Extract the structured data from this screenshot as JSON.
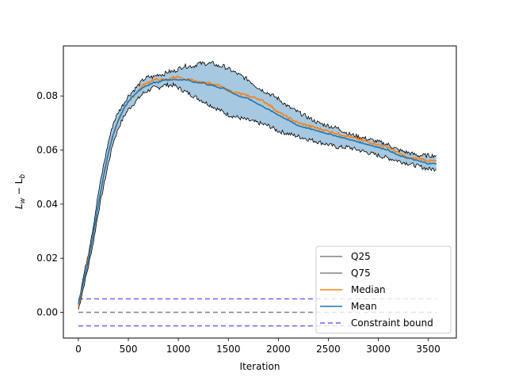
{
  "chart_data": {
    "type": "line",
    "title": "",
    "xlabel": "Iteration",
    "ylabel_main": "L",
    "ylabel_sub1": "w",
    "ylabel_mid": " − L",
    "ylabel_sub2": "b",
    "xlim": [
      -150,
      3780
    ],
    "ylim": [
      -0.0095,
      0.0985
    ],
    "x_ticks": [
      0,
      500,
      1000,
      1500,
      2000,
      2500,
      3000,
      3500
    ],
    "y_ticks": [
      0.0,
      0.02,
      0.04,
      0.06,
      0.08
    ],
    "x_tick_labels": [
      "0",
      "500",
      "1000",
      "1500",
      "2000",
      "2500",
      "3000",
      "3500"
    ],
    "y_tick_labels": [
      "0.00",
      "0.02",
      "0.04",
      "0.06",
      "0.08"
    ],
    "grid": false,
    "legend_position": "lower-right",
    "series": [
      {
        "name": "Q25",
        "color": "#000000",
        "x": [
          0,
          50,
          100,
          150,
          200,
          250,
          300,
          350,
          400,
          450,
          500,
          550,
          600,
          650,
          700,
          750,
          800,
          850,
          900,
          950,
          1000,
          1050,
          1100,
          1150,
          1200,
          1250,
          1300,
          1350,
          1400,
          1450,
          1500,
          1600,
          1700,
          1800,
          1900,
          2000,
          2100,
          2200,
          2300,
          2400,
          2500,
          2600,
          2700,
          2800,
          2900,
          3000,
          3100,
          3200,
          3300,
          3400,
          3500,
          3580
        ],
        "y": [
          0.001,
          0.009,
          0.017,
          0.026,
          0.037,
          0.046,
          0.055,
          0.063,
          0.068,
          0.072,
          0.075,
          0.077,
          0.079,
          0.081,
          0.082,
          0.083,
          0.083,
          0.084,
          0.084,
          0.084,
          0.083,
          0.082,
          0.081,
          0.08,
          0.079,
          0.078,
          0.077,
          0.076,
          0.075,
          0.074,
          0.073,
          0.072,
          0.071,
          0.07,
          0.069,
          0.067,
          0.066,
          0.065,
          0.064,
          0.063,
          0.062,
          0.061,
          0.061,
          0.06,
          0.059,
          0.058,
          0.057,
          0.056,
          0.055,
          0.054,
          0.053,
          0.053
        ]
      },
      {
        "name": "Q75",
        "color": "#000000",
        "x": [
          0,
          50,
          100,
          150,
          200,
          250,
          300,
          350,
          400,
          450,
          500,
          550,
          600,
          650,
          700,
          750,
          800,
          850,
          900,
          950,
          1000,
          1050,
          1100,
          1150,
          1200,
          1250,
          1300,
          1350,
          1400,
          1450,
          1500,
          1600,
          1700,
          1800,
          1900,
          2000,
          2100,
          2200,
          2300,
          2400,
          2500,
          2600,
          2700,
          2800,
          2900,
          3000,
          3100,
          3200,
          3300,
          3400,
          3500,
          3580
        ],
        "y": [
          0.004,
          0.013,
          0.022,
          0.032,
          0.044,
          0.054,
          0.063,
          0.07,
          0.074,
          0.077,
          0.08,
          0.082,
          0.084,
          0.086,
          0.087,
          0.087,
          0.088,
          0.088,
          0.089,
          0.089,
          0.09,
          0.091,
          0.091,
          0.091,
          0.092,
          0.092,
          0.092,
          0.092,
          0.091,
          0.091,
          0.09,
          0.088,
          0.086,
          0.083,
          0.081,
          0.079,
          0.076,
          0.074,
          0.072,
          0.07,
          0.069,
          0.068,
          0.066,
          0.065,
          0.064,
          0.063,
          0.062,
          0.06,
          0.059,
          0.058,
          0.058,
          0.058
        ]
      },
      {
        "name": "Median",
        "color": "#ff7f0e",
        "x": [
          0,
          50,
          100,
          150,
          200,
          250,
          300,
          350,
          400,
          450,
          500,
          550,
          600,
          650,
          700,
          750,
          800,
          850,
          900,
          950,
          1000,
          1050,
          1100,
          1150,
          1200,
          1250,
          1300,
          1350,
          1400,
          1450,
          1500,
          1600,
          1700,
          1800,
          1900,
          2000,
          2100,
          2200,
          2300,
          2400,
          2500,
          2600,
          2700,
          2800,
          2900,
          3000,
          3100,
          3200,
          3300,
          3400,
          3500,
          3580
        ],
        "y": [
          0.002,
          0.011,
          0.02,
          0.029,
          0.04,
          0.05,
          0.059,
          0.066,
          0.071,
          0.075,
          0.078,
          0.08,
          0.082,
          0.084,
          0.085,
          0.086,
          0.086,
          0.086,
          0.086,
          0.087,
          0.087,
          0.086,
          0.086,
          0.086,
          0.085,
          0.085,
          0.085,
          0.084,
          0.084,
          0.083,
          0.082,
          0.081,
          0.08,
          0.079,
          0.077,
          0.074,
          0.072,
          0.07,
          0.069,
          0.068,
          0.067,
          0.066,
          0.065,
          0.064,
          0.063,
          0.062,
          0.061,
          0.059,
          0.057,
          0.057,
          0.056,
          0.056
        ]
      },
      {
        "name": "Mean",
        "color": "#1f77b4",
        "x": [
          0,
          50,
          100,
          150,
          200,
          250,
          300,
          350,
          400,
          450,
          500,
          550,
          600,
          650,
          700,
          750,
          800,
          850,
          900,
          950,
          1000,
          1050,
          1100,
          1150,
          1200,
          1250,
          1300,
          1350,
          1400,
          1450,
          1500,
          1600,
          1700,
          1800,
          1900,
          2000,
          2100,
          2200,
          2300,
          2400,
          2500,
          2600,
          2700,
          2800,
          2900,
          3000,
          3100,
          3200,
          3300,
          3400,
          3500,
          3580
        ],
        "y": [
          0.003,
          0.011,
          0.019,
          0.029,
          0.04,
          0.05,
          0.059,
          0.066,
          0.071,
          0.075,
          0.078,
          0.08,
          0.082,
          0.083,
          0.084,
          0.085,
          0.085,
          0.086,
          0.086,
          0.086,
          0.086,
          0.086,
          0.086,
          0.085,
          0.085,
          0.085,
          0.084,
          0.084,
          0.083,
          0.083,
          0.082,
          0.08,
          0.079,
          0.077,
          0.075,
          0.073,
          0.071,
          0.069,
          0.068,
          0.067,
          0.066,
          0.065,
          0.064,
          0.063,
          0.062,
          0.061,
          0.06,
          0.058,
          0.057,
          0.056,
          0.055,
          0.055
        ]
      },
      {
        "name": "Constraint bound",
        "color": "#6666ff",
        "style": "dashed",
        "x": [
          0,
          3580
        ],
        "y_upper": 0.005,
        "y_lower": -0.005
      }
    ],
    "zero_line": {
      "y": 0.0,
      "color": "#808080",
      "style": "dashed"
    },
    "band": {
      "between": [
        "Q25",
        "Q75"
      ],
      "color": "#a6c8e0"
    }
  }
}
